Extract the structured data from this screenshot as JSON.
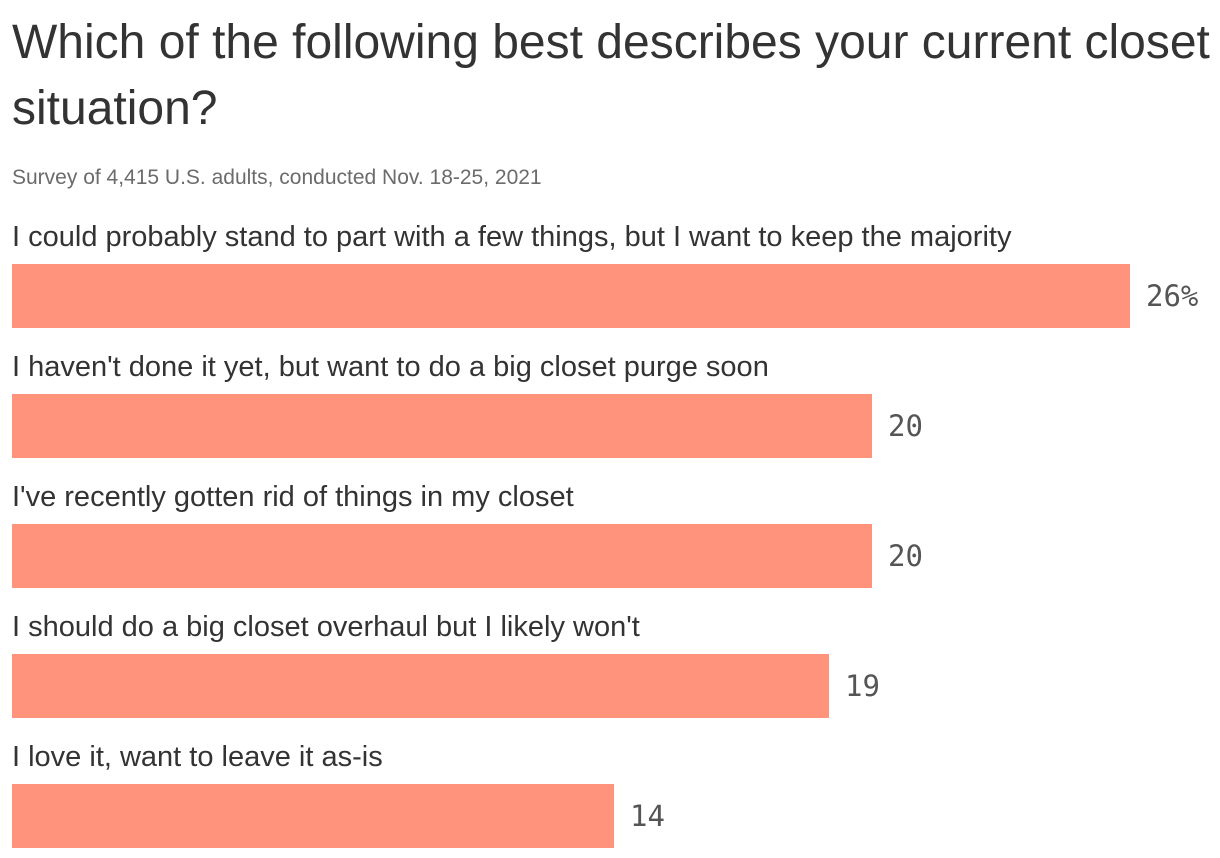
{
  "chart_data": {
    "type": "bar",
    "orientation": "horizontal",
    "title": "Which of the following best describes your current closet situation?",
    "subtitle": "Survey of 4,415 U.S. adults, conducted Nov. 18-25, 2021",
    "categories": [
      "I could probably stand to part with a few things, but I want to keep the majority",
      "I haven't done it yet, but want to do a big closet purge soon",
      "I've recently gotten rid of things in my closet",
      "I should do a big closet overhaul but I likely won't",
      "I love it, want to leave it as-is"
    ],
    "values": [
      26,
      20,
      20,
      19,
      14
    ],
    "value_labels": [
      "26%",
      "20",
      "20",
      "19",
      "14"
    ],
    "xlim": [
      0,
      26
    ],
    "bar_color": "#ff937c",
    "grid": false,
    "legend": "none"
  }
}
